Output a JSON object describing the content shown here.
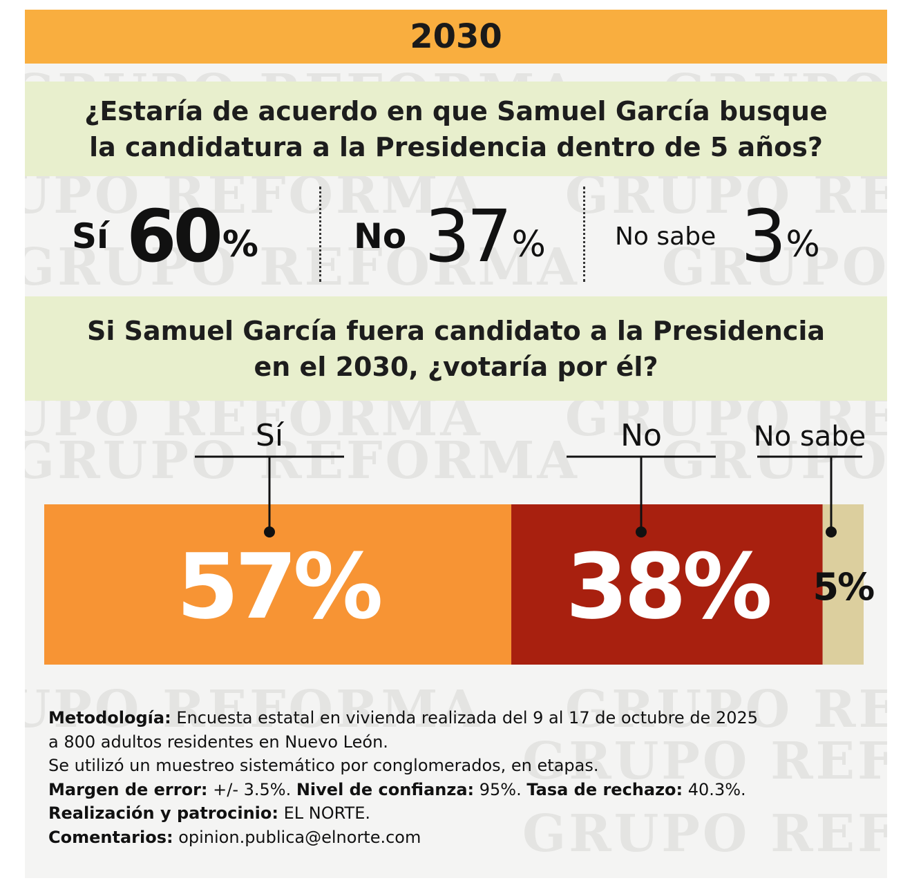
{
  "header": {
    "title": "2030"
  },
  "question1": {
    "line1": "¿Estaría de acuerdo en que Samuel García busque",
    "line2": "la candidatura a la Presidencia dentro de 5 años?"
  },
  "question1_results": [
    {
      "label": "Sí",
      "value": "60",
      "unit": "%"
    },
    {
      "label": "No",
      "value": "37",
      "unit": "%"
    },
    {
      "label": "No sabe",
      "value": "3",
      "unit": "%"
    }
  ],
  "question2": {
    "line1": "Si Samuel García fuera candidato a la Presidencia",
    "line2": "en el 2030, ¿votaría por él?"
  },
  "chart_data": {
    "type": "bar",
    "orientation": "horizontal-stacked",
    "title": "Si Samuel García fuera candidato a la Presidencia en el 2030, ¿votaría por él?",
    "categories": [
      "Sí",
      "No",
      "No sabe"
    ],
    "values": [
      57,
      38,
      5
    ],
    "value_labels": [
      "57%",
      "38%",
      "5%"
    ],
    "colors": [
      "#f79434",
      "#a8200f",
      "#dccf9e"
    ],
    "label_colors": [
      "#ffffff",
      "#ffffff",
      "#111111"
    ],
    "total": 100
  },
  "footer": {
    "methodology_label": "Metodología:",
    "methodology_text": " Encuesta estatal en vivienda realizada del 9 al 17 de octubre de 2025",
    "methodology_line2": "a 800 adultos residentes en Nuevo León.",
    "sampling_line": "Se utilizó un muestreo sistemático por conglomerados, en etapas.",
    "margin_label": "Margen de error:",
    "margin_value": " +/- 3.5%. ",
    "confidence_label": "Nivel de confianza:",
    "confidence_value": " 95%. ",
    "rejection_label": "Tasa de rechazo:",
    "rejection_value": " 40.3%.",
    "sponsor_label": "Realización y patrocinio:",
    "sponsor_value": " EL NORTE.",
    "comments_label": "Comentarios:",
    "comments_value": " opinion.publica@elnorte.com"
  },
  "watermark": {
    "text": "GRUPO REFORMA"
  },
  "colors": {
    "header": "#f9ae3f",
    "question_band": "#e8efcd",
    "panel": "#f4f4f3"
  }
}
